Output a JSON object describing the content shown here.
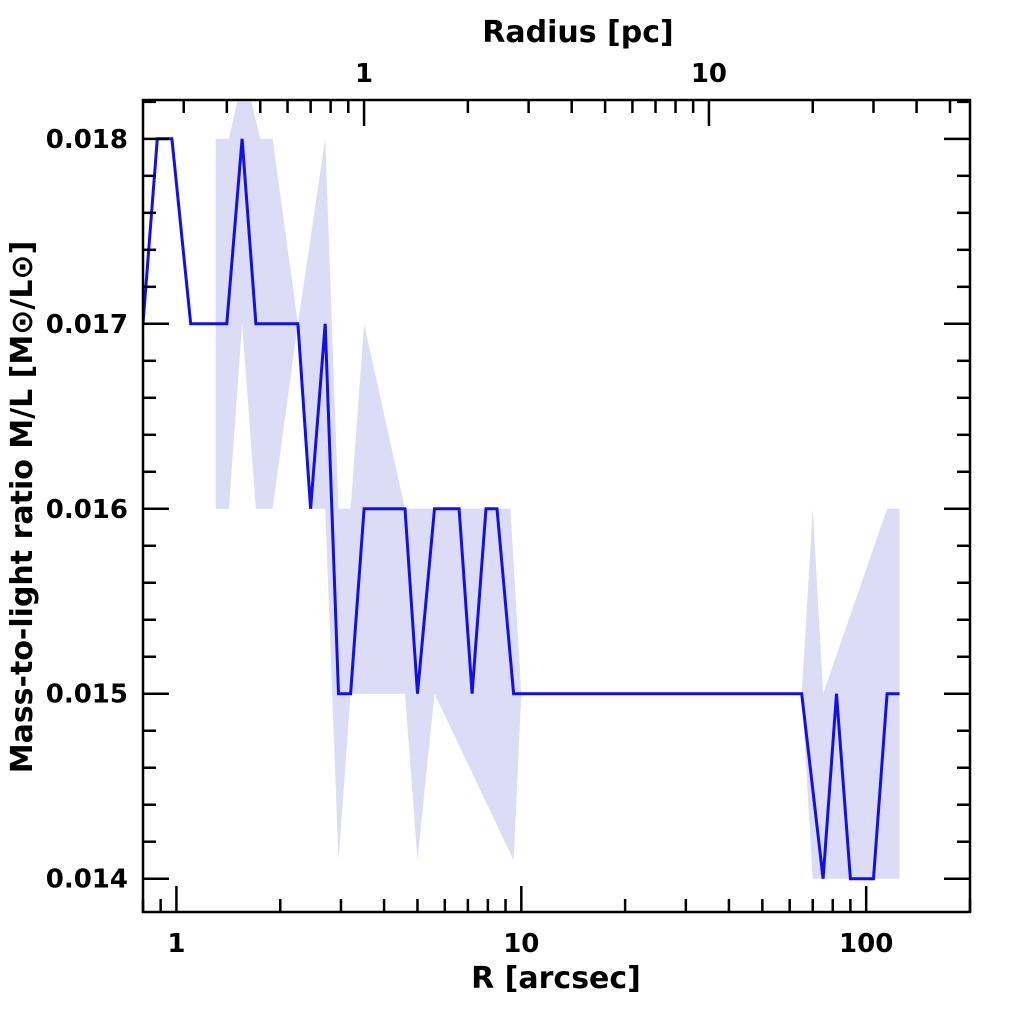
{
  "chart_data": {
    "type": "line",
    "xlabel": "R [arcsec]",
    "ylabel": "Mass-to-light ratio M/L [M⊙/L⊙]",
    "top_xlabel": "Radius [pc]",
    "x_scale": "log",
    "xlim": [
      0.8,
      200
    ],
    "ylim": [
      0.01382,
      0.01821
    ],
    "x_ticklabels": [
      {
        "value": 1,
        "label": "1"
      },
      {
        "value": 10,
        "label": "10"
      },
      {
        "value": 100,
        "label": "100"
      }
    ],
    "top_ticklabels": [
      {
        "value": 3.5,
        "label": "1"
      },
      {
        "value": 35,
        "label": "10"
      }
    ],
    "y_ticklabels": [
      {
        "value": 0.014,
        "label": "0.014"
      },
      {
        "value": 0.015,
        "label": "0.015"
      },
      {
        "value": 0.016,
        "label": "0.016"
      },
      {
        "value": 0.017,
        "label": "0.017"
      },
      {
        "value": 0.018,
        "label": "0.018"
      }
    ],
    "grid": false,
    "colors": {
      "line": "#1010ee",
      "band": "#dcdcf6",
      "axes": "#000000"
    },
    "series": [
      {
        "points": [
          [
            0.8,
            0.017
          ],
          [
            0.88,
            0.018
          ],
          [
            0.97,
            0.018
          ],
          [
            1.1,
            0.017
          ],
          [
            1.4,
            0.017
          ],
          [
            1.55,
            0.018
          ],
          [
            1.7,
            0.017
          ],
          [
            2.25,
            0.017
          ],
          [
            2.45,
            0.016
          ],
          [
            2.7,
            0.017
          ],
          [
            2.95,
            0.015
          ],
          [
            3.2,
            0.015
          ],
          [
            3.5,
            0.016
          ],
          [
            4.6,
            0.016
          ],
          [
            5.0,
            0.015
          ],
          [
            5.6,
            0.016
          ],
          [
            6.6,
            0.016
          ],
          [
            7.2,
            0.015
          ],
          [
            7.9,
            0.016
          ],
          [
            8.5,
            0.016
          ],
          [
            9.5,
            0.015
          ],
          [
            65,
            0.015
          ],
          [
            75,
            0.014
          ],
          [
            82,
            0.015
          ],
          [
            90,
            0.014
          ],
          [
            105,
            0.014
          ],
          [
            115,
            0.015
          ],
          [
            125,
            0.015
          ]
        ]
      }
    ],
    "band": {
      "upper": [
        [
          1.3,
          0.018
        ],
        [
          1.42,
          0.018
        ],
        [
          1.5,
          0.0182
        ],
        [
          1.65,
          0.0182
        ],
        [
          1.75,
          0.018
        ],
        [
          1.9,
          0.018
        ],
        [
          2.25,
          0.017
        ],
        [
          2.7,
          0.018
        ],
        [
          2.95,
          0.016
        ],
        [
          3.2,
          0.016
        ],
        [
          3.5,
          0.017
        ],
        [
          4.6,
          0.016
        ],
        [
          7.9,
          0.016
        ],
        [
          9.3,
          0.016
        ],
        [
          10,
          0.015
        ],
        [
          65,
          0.015
        ],
        [
          70,
          0.016
        ],
        [
          75,
          0.015
        ],
        [
          115,
          0.016
        ],
        [
          125,
          0.016
        ]
      ],
      "lower": [
        [
          1.3,
          0.016
        ],
        [
          1.42,
          0.016
        ],
        [
          1.55,
          0.017
        ],
        [
          1.7,
          0.016
        ],
        [
          1.9,
          0.016
        ],
        [
          2.25,
          0.017
        ],
        [
          2.45,
          0.016
        ],
        [
          2.7,
          0.016
        ],
        [
          2.95,
          0.0141
        ],
        [
          3.2,
          0.015
        ],
        [
          3.5,
          0.015
        ],
        [
          4.6,
          0.015
        ],
        [
          5.0,
          0.0141
        ],
        [
          5.6,
          0.015
        ],
        [
          9.5,
          0.0141
        ],
        [
          10,
          0.015
        ],
        [
          65,
          0.015
        ],
        [
          70,
          0.014
        ],
        [
          75,
          0.014
        ],
        [
          125,
          0.014
        ]
      ]
    }
  }
}
